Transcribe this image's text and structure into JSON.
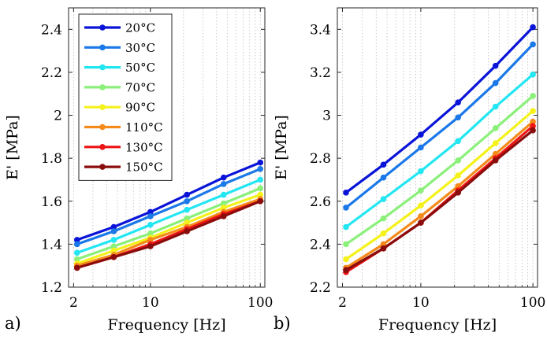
{
  "chart_data": [
    {
      "type": "line",
      "panel_label": "a)",
      "xlabel": "Frequency [Hz]",
      "ylabel": "E' [MPa]",
      "xscale": "log",
      "xlim": [
        1.8,
        110
      ],
      "ylim": [
        1.2,
        2.5
      ],
      "xticks": [
        2,
        10,
        100
      ],
      "xtick_labels": [
        "2",
        "10",
        "100"
      ],
      "yticks": [
        1.2,
        1.4,
        1.6,
        1.8,
        2.0,
        2.2,
        2.4
      ],
      "ytick_labels": [
        "1.2",
        "1.4",
        "1.6",
        "1.8",
        "2",
        "2.2",
        "2.4"
      ],
      "grid": "x-minor dotted",
      "legend_position": "upper-left",
      "x": [
        2.15,
        4.64,
        10,
        21.5,
        46.4,
        100
      ],
      "series": [
        {
          "name": "20°C",
          "color": "#0a14d8",
          "values": [
            1.42,
            1.48,
            1.55,
            1.63,
            1.71,
            1.78
          ]
        },
        {
          "name": "30°C",
          "color": "#1a78e8",
          "values": [
            1.4,
            1.46,
            1.53,
            1.6,
            1.68,
            1.75
          ]
        },
        {
          "name": "50°C",
          "color": "#22e6f2",
          "values": [
            1.36,
            1.42,
            1.49,
            1.56,
            1.63,
            1.7
          ]
        },
        {
          "name": "70°C",
          "color": "#8af07a",
          "values": [
            1.33,
            1.39,
            1.45,
            1.52,
            1.59,
            1.66
          ]
        },
        {
          "name": "90°C",
          "color": "#f4f21a",
          "values": [
            1.31,
            1.37,
            1.43,
            1.5,
            1.57,
            1.63
          ]
        },
        {
          "name": "110°C",
          "color": "#f48a1a",
          "values": [
            1.3,
            1.35,
            1.42,
            1.48,
            1.55,
            1.61
          ]
        },
        {
          "name": "130°C",
          "color": "#ec1414",
          "values": [
            1.29,
            1.34,
            1.4,
            1.47,
            1.54,
            1.6
          ]
        },
        {
          "name": "150°C",
          "color": "#8a0c0c",
          "values": [
            1.29,
            1.34,
            1.39,
            1.46,
            1.53,
            1.6
          ]
        }
      ]
    },
    {
      "type": "line",
      "panel_label": "b)",
      "xlabel": "Frequency [Hz]",
      "ylabel": "E' [MPa]",
      "xscale": "log",
      "xlim": [
        1.8,
        110
      ],
      "ylim": [
        2.2,
        3.5
      ],
      "xticks": [
        2,
        10,
        100
      ],
      "xtick_labels": [
        "2",
        "10",
        "100"
      ],
      "yticks": [
        2.2,
        2.4,
        2.6,
        2.8,
        3.0,
        3.2,
        3.4
      ],
      "ytick_labels": [
        "2.2",
        "2.4",
        "2.6",
        "2.8",
        "3",
        "3.2",
        "3.4"
      ],
      "grid": "x-minor dotted",
      "x": [
        2.15,
        4.64,
        10,
        21.5,
        46.4,
        100
      ],
      "series": [
        {
          "name": "20°C",
          "color": "#0a14d8",
          "values": [
            2.64,
            2.77,
            2.91,
            3.06,
            3.23,
            3.41
          ]
        },
        {
          "name": "30°C",
          "color": "#1a78e8",
          "values": [
            2.57,
            2.71,
            2.85,
            2.99,
            3.15,
            3.33
          ]
        },
        {
          "name": "50°C",
          "color": "#22e6f2",
          "values": [
            2.48,
            2.61,
            2.74,
            2.88,
            3.04,
            3.19
          ]
        },
        {
          "name": "70°C",
          "color": "#8af07a",
          "values": [
            2.4,
            2.52,
            2.65,
            2.79,
            2.94,
            3.09
          ]
        },
        {
          "name": "90°C",
          "color": "#f4f21a",
          "values": [
            2.33,
            2.45,
            2.58,
            2.72,
            2.87,
            3.02
          ]
        },
        {
          "name": "110°C",
          "color": "#f48a1a",
          "values": [
            2.29,
            2.4,
            2.53,
            2.67,
            2.82,
            2.97
          ]
        },
        {
          "name": "130°C",
          "color": "#ec1414",
          "values": [
            2.27,
            2.38,
            2.5,
            2.65,
            2.8,
            2.95
          ]
        },
        {
          "name": "150°C",
          "color": "#8a0c0c",
          "values": [
            2.28,
            2.38,
            2.5,
            2.64,
            2.79,
            2.93
          ]
        }
      ]
    }
  ]
}
